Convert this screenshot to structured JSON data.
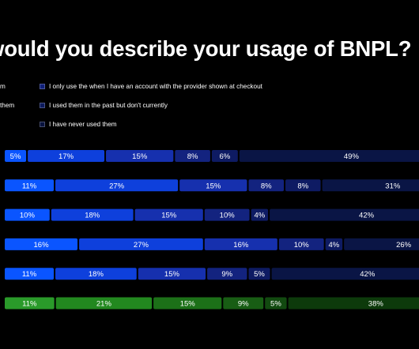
{
  "chart_data": {
    "type": "bar",
    "orientation": "horizontal",
    "stacked": true,
    "title": "would you describe your usage of BNPL?",
    "legend": {
      "placement": "top",
      "entries": [
        {
          "label": "m",
          "color": "#2049ee",
          "clipped": true
        },
        {
          "label": "them",
          "color": "#1a33b0",
          "clipped": true
        },
        {
          "label": "I only use the when I have an account with the provider shown at checkout",
          "color": "#0f1f78"
        },
        {
          "label": "I used them in the past but don't currently",
          "color": "#0c1a5c"
        },
        {
          "label": "I have never used them",
          "color": "#08123c"
        }
      ]
    },
    "colors": {
      "blue": [
        "#0a55ff",
        "#0e40dc",
        "#1630ae",
        "#13237f",
        "#0e1b63",
        "#0a1545"
      ],
      "green": [
        "#2a9a2a",
        "#22881f",
        "#1c7018",
        "#185d14",
        "#124a10",
        "#0d3a0b"
      ]
    },
    "rows": [
      {
        "palette": "blue",
        "values": [
          5,
          17,
          15,
          8,
          6,
          49
        ]
      },
      {
        "palette": "blue",
        "values": [
          11,
          27,
          15,
          8,
          8,
          31
        ]
      },
      {
        "palette": "blue",
        "values": [
          10,
          18,
          15,
          10,
          4,
          42
        ]
      },
      {
        "palette": "blue",
        "values": [
          16,
          27,
          16,
          10,
          4,
          26
        ]
      },
      {
        "palette": "blue",
        "values": [
          11,
          18,
          15,
          9,
          5,
          42
        ]
      },
      {
        "palette": "green",
        "values": [
          11,
          21,
          15,
          9,
          5,
          38
        ]
      }
    ],
    "value_format": "{v}%"
  }
}
